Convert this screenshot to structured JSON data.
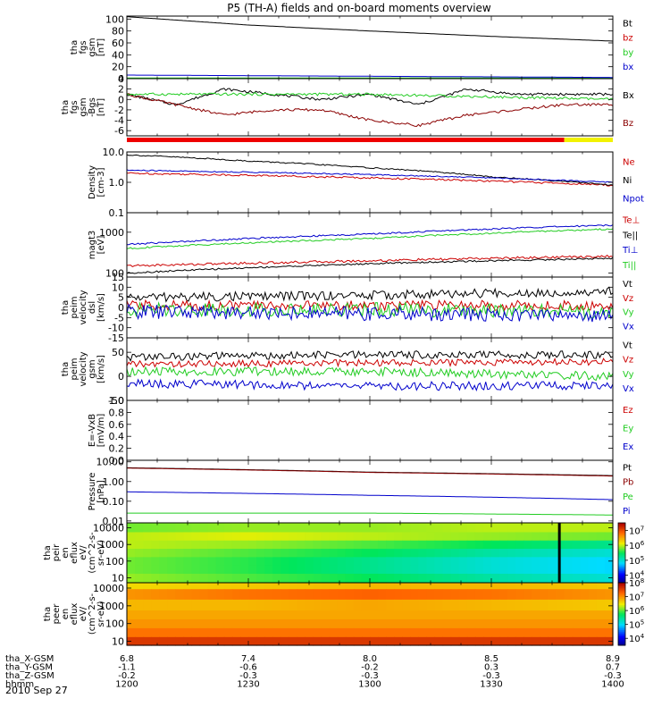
{
  "title": "P5 (TH-A) fields and on-board moments overview",
  "date_label": "2010 Sep 27",
  "colors": {
    "black": "#000000",
    "red": "#cc0000",
    "darkred": "#8b0000",
    "green": "#22cc22",
    "blue": "#0000cc",
    "yellow": "#f2f200"
  },
  "ephemeris": [
    {
      "label": "tha_X-GSM",
      "values": [
        "6.8",
        "7.4",
        "8.0",
        "8.5",
        "8.9"
      ]
    },
    {
      "label": "tha_Y-GSM",
      "values": [
        "-1.1",
        "-0.6",
        "-0.2",
        "0.3",
        "0.7"
      ]
    },
    {
      "label": "tha_Z-GSM",
      "values": [
        "-0.2",
        "-0.3",
        "-0.3",
        "-0.3",
        "-0.3"
      ]
    },
    {
      "label": "hhmm",
      "values": [
        "1200",
        "1230",
        "1300",
        "1330",
        "1400"
      ]
    }
  ],
  "chart_data": [
    {
      "type": "line",
      "ylabel": "tha\nfgs\ngsm\n[nT]",
      "ylim": [
        0,
        105
      ],
      "yticks": [
        "100",
        "80",
        "60",
        "40",
        "20",
        "0"
      ],
      "series": [
        {
          "name": "Bt",
          "color": "#000000",
          "x": [
            12.0,
            12.5,
            13.0,
            13.5,
            14.0
          ],
          "y": [
            104,
            90,
            80,
            71,
            63
          ]
        },
        {
          "name": "bz",
          "color": "#cc0000",
          "x": [
            12.0,
            14.0
          ],
          "y": [
            0,
            0
          ]
        },
        {
          "name": "by",
          "color": "#22cc22",
          "x": [
            12.0,
            14.0
          ],
          "y": [
            1,
            1
          ]
        },
        {
          "name": "bx",
          "color": "#0000cc",
          "x": [
            12.0,
            13.0,
            14.0
          ],
          "y": [
            6,
            4,
            2
          ]
        }
      ]
    },
    {
      "type": "line",
      "ylabel": "tha\nfgs\ngsm\n-Bgs\n[nT]",
      "ylim": [
        -7,
        4
      ],
      "yticks": [
        "4",
        "2",
        "0",
        "-2",
        "-4",
        "-6"
      ],
      "series": [
        {
          "name": "Bx",
          "color": "#000000",
          "x": [
            12.0,
            12.2,
            12.4,
            12.6,
            12.8,
            13.0,
            13.2,
            13.4,
            13.6,
            13.8,
            14.0
          ],
          "y": [
            1,
            -1,
            2,
            1,
            0,
            1,
            -1,
            2,
            1,
            1,
            1
          ]
        },
        {
          "name": "Bz",
          "color": "#8b0000",
          "x": [
            12.0,
            12.2,
            12.4,
            12.6,
            12.8,
            13.0,
            13.2,
            13.4,
            13.6,
            13.8,
            14.0
          ],
          "y": [
            1,
            -1,
            -3,
            -2,
            -2,
            -4,
            -5,
            -3,
            -2,
            -1,
            -1
          ]
        },
        {
          "name": "By",
          "color": "#22cc22",
          "x": [
            12.0,
            13.0,
            14.0
          ],
          "y": [
            1,
            1,
            0
          ]
        }
      ],
      "legend_order": [
        "Bx",
        "Bz"
      ],
      "mode_bar": [
        {
          "from": 12.0,
          "to": 13.8,
          "color": "#ee0000"
        },
        {
          "from": 13.8,
          "to": 14.0,
          "color": "#f2f200"
        }
      ]
    },
    {
      "type": "line",
      "ylabel": "Density\n[cm-3]",
      "yscale": "log",
      "ylim": [
        0.1,
        10
      ],
      "yticks": [
        "10.0",
        "1.0",
        "0.1"
      ],
      "series": [
        {
          "name": "Ne",
          "color": "#cc0000",
          "x": [
            12.0,
            13.0,
            14.0
          ],
          "y": [
            2.0,
            1.4,
            0.8
          ]
        },
        {
          "name": "Ni",
          "color": "#000000",
          "x": [
            12.0,
            12.5,
            13.0,
            13.5,
            14.0
          ],
          "y": [
            8.0,
            5.0,
            3.0,
            1.5,
            0.8
          ]
        },
        {
          "name": "Npot",
          "color": "#0000cc",
          "x": [
            12.0,
            13.0,
            14.0
          ],
          "y": [
            2.5,
            1.8,
            1.0
          ]
        }
      ]
    },
    {
      "type": "line",
      "ylabel": "magt3\n[eV]",
      "yscale": "log",
      "ylim": [
        80,
        3000
      ],
      "yticks": [
        "1000",
        "100"
      ],
      "series": [
        {
          "name": "Te⊥",
          "color": "#cc0000",
          "x": [
            12.0,
            13.0,
            14.0
          ],
          "y": [
            150,
            200,
            260
          ]
        },
        {
          "name": "Te||",
          "color": "#000000",
          "x": [
            12.0,
            13.0,
            14.0
          ],
          "y": [
            100,
            170,
            230
          ]
        },
        {
          "name": "Ti⊥",
          "color": "#0000cc",
          "x": [
            12.0,
            13.0,
            14.0
          ],
          "y": [
            500,
            900,
            1500
          ]
        },
        {
          "name": "Ti||",
          "color": "#22cc22",
          "x": [
            12.0,
            13.0,
            14.0
          ],
          "y": [
            400,
            700,
            1200
          ]
        }
      ]
    },
    {
      "type": "line",
      "ylabel": "tha\npeim\nvelocity\ndsl\n[km/s]",
      "ylim": [
        -15,
        15
      ],
      "yticks": [
        "15",
        "10",
        "5",
        "0",
        "-5",
        "-10",
        "-15"
      ],
      "series": [
        {
          "name": "Vt",
          "color": "#000000",
          "x": [
            12.0,
            13.0,
            14.0
          ],
          "y": [
            5,
            6,
            8
          ]
        },
        {
          "name": "Vz",
          "color": "#cc0000",
          "x": [
            12.0,
            13.0,
            14.0
          ],
          "y": [
            1,
            1,
            1
          ]
        },
        {
          "name": "Vy",
          "color": "#22cc22",
          "x": [
            12.0,
            13.0,
            14.0
          ],
          "y": [
            -1,
            -1,
            -2
          ]
        },
        {
          "name": "Vx",
          "color": "#0000cc",
          "x": [
            12.0,
            13.0,
            14.0
          ],
          "y": [
            -2,
            -3,
            -4
          ]
        }
      ]
    },
    {
      "type": "line",
      "ylabel": "tha\npeim\nvelocity\ngsm\n[km/s]",
      "ylim": [
        -50,
        80
      ],
      "yticks": [
        "50",
        "0",
        "-50"
      ],
      "series": [
        {
          "name": "Vt",
          "color": "#000000",
          "x": [
            12.0,
            13.0,
            14.0
          ],
          "y": [
            40,
            45,
            45
          ]
        },
        {
          "name": "Vz",
          "color": "#cc0000",
          "x": [
            12.0,
            13.0,
            14.0
          ],
          "y": [
            25,
            28,
            30
          ]
        },
        {
          "name": "Vy",
          "color": "#22cc22",
          "x": [
            12.0,
            13.0,
            14.0
          ],
          "y": [
            10,
            10,
            0
          ]
        },
        {
          "name": "Vx",
          "color": "#0000cc",
          "x": [
            12.0,
            13.0,
            14.0
          ],
          "y": [
            -15,
            -20,
            -20
          ]
        }
      ]
    },
    {
      "type": "line",
      "ylabel": "E=-VxB\n[mV/m]",
      "ylim": [
        0,
        1
      ],
      "yticks": [
        "1.0",
        "0.8",
        "0.6",
        "0.4",
        "0.2",
        "0.0"
      ],
      "series": [
        {
          "name": "Ez",
          "color": "#cc0000",
          "x": [],
          "y": []
        },
        {
          "name": "Ey",
          "color": "#22cc22",
          "x": [],
          "y": []
        },
        {
          "name": "Ex",
          "color": "#0000cc",
          "x": [],
          "y": []
        }
      ]
    },
    {
      "type": "line",
      "ylabel": "Pressure\n[nPa]",
      "yscale": "log",
      "ylim": [
        0.008,
        12
      ],
      "yticks": [
        "10.00",
        "1.00",
        "0.10",
        "0.01"
      ],
      "series": [
        {
          "name": "Pt",
          "color": "#000000",
          "x": [
            12.0,
            13.0,
            14.0
          ],
          "y": [
            5.0,
            3.0,
            2.0
          ]
        },
        {
          "name": "Pb",
          "color": "#8b0000",
          "x": [
            12.0,
            13.0,
            14.0
          ],
          "y": [
            4.8,
            2.9,
            1.9
          ]
        },
        {
          "name": "Pe",
          "color": "#22cc22",
          "x": [
            12.0,
            13.0,
            14.0
          ],
          "y": [
            0.025,
            0.025,
            0.02
          ]
        },
        {
          "name": "Pi",
          "color": "#0000cc",
          "x": [
            12.0,
            13.0,
            14.0
          ],
          "y": [
            0.3,
            0.2,
            0.12
          ]
        }
      ]
    },
    {
      "type": "heatmap",
      "ylabel": "tha\npeir\nen\neflux\neV/\n(cm^2-s-\nsr-eV)",
      "yscale": "log",
      "ylim": [
        5,
        20000
      ],
      "yticks": [
        "10000",
        "1000",
        "100",
        "10"
      ],
      "colorbar_ticks": [
        "10^7",
        "10^6",
        "10^5",
        "10^4"
      ],
      "colorbar_range": [
        3.5,
        7.5
      ],
      "gap_at": 13.78,
      "rows": [
        {
          "energy": 10000,
          "values": [
            5.8,
            5.9,
            5.9,
            6.0,
            6.0
          ]
        },
        {
          "energy": 3000,
          "values": [
            6.0,
            6.1,
            6.0,
            5.9,
            5.8
          ]
        },
        {
          "energy": 1000,
          "values": [
            6.0,
            5.9,
            5.7,
            5.5,
            5.3
          ]
        },
        {
          "energy": 300,
          "values": [
            5.9,
            5.7,
            5.5,
            5.2,
            5.0
          ]
        },
        {
          "energy": 100,
          "values": [
            5.8,
            5.6,
            5.3,
            5.0,
            4.8
          ]
        },
        {
          "energy": 30,
          "values": [
            5.8,
            5.6,
            5.3,
            5.0,
            4.8
          ]
        },
        {
          "energy": 10,
          "values": [
            5.9,
            5.7,
            5.5,
            5.2,
            5.0
          ]
        }
      ]
    },
    {
      "type": "heatmap",
      "ylabel": "tha\npeer\nen\neflux\neV/\n(cm^2-s-\nsr-eV)",
      "yscale": "log",
      "ylim": [
        6,
        20000
      ],
      "yticks": [
        "10000",
        "1000",
        "100",
        "10"
      ],
      "colorbar_ticks": [
        "10^8",
        "10^7",
        "10^6",
        "10^5",
        "10^4"
      ],
      "colorbar_range": [
        3.5,
        8.0
      ],
      "rows": [
        {
          "energy": 15000,
          "values": [
            6.6,
            6.7,
            6.8,
            6.8,
            6.7
          ]
        },
        {
          "energy": 5000,
          "values": [
            7.0,
            7.2,
            7.3,
            7.2,
            7.0
          ]
        },
        {
          "energy": 1000,
          "values": [
            6.8,
            6.8,
            6.9,
            6.8,
            6.7
          ]
        },
        {
          "energy": 300,
          "values": [
            6.9,
            6.9,
            6.9,
            6.9,
            6.9
          ]
        },
        {
          "energy": 100,
          "values": [
            7.0,
            7.0,
            7.0,
            7.0,
            7.0
          ]
        },
        {
          "energy": 30,
          "values": [
            7.2,
            7.2,
            7.2,
            7.2,
            7.2
          ]
        },
        {
          "energy": 10,
          "values": [
            7.6,
            7.6,
            7.6,
            7.6,
            7.6
          ]
        }
      ]
    }
  ]
}
